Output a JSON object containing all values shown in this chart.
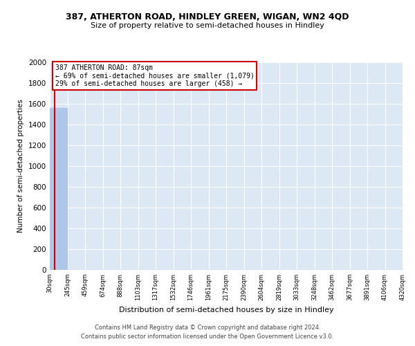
{
  "title1": "387, ATHERTON ROAD, HINDLEY GREEN, WIGAN, WN2 4QD",
  "title2": "Size of property relative to semi-detached houses in Hindley",
  "xlabel": "Distribution of semi-detached houses by size in Hindley",
  "ylabel": "Number of semi-detached properties",
  "bin_edges": [
    30,
    245,
    459,
    674,
    888,
    1103,
    1317,
    1532,
    1746,
    1961,
    2175,
    2390,
    2604,
    2819,
    3033,
    3248,
    3462,
    3677,
    3891,
    4106,
    4320
  ],
  "bar_heights": [
    1560,
    0,
    0,
    0,
    0,
    0,
    0,
    0,
    0,
    0,
    0,
    0,
    0,
    0,
    0,
    0,
    0,
    0,
    0,
    0
  ],
  "bar_color": "#aec6e8",
  "property_size": 87,
  "pct_smaller": 69,
  "n_smaller": 1079,
  "pct_larger": 29,
  "n_larger": 458,
  "vline_color": "#cc0000",
  "ylim": [
    0,
    2000
  ],
  "yticks": [
    0,
    200,
    400,
    600,
    800,
    1000,
    1200,
    1400,
    1600,
    1800,
    2000
  ],
  "bg_color": "#dce9f5",
  "grid_color": "#ffffff",
  "footer1": "Contains HM Land Registry data © Crown copyright and database right 2024.",
  "footer2": "Contains public sector information licensed under the Open Government Licence v3.0."
}
